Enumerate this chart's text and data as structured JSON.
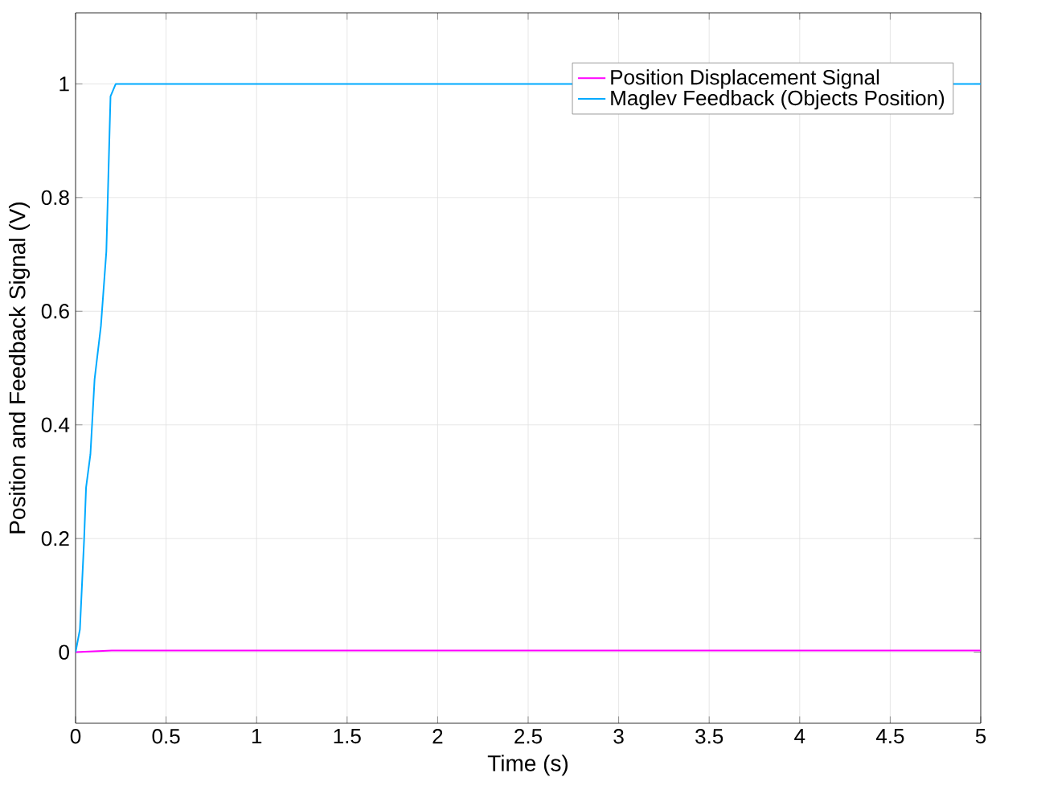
{
  "chart_data": {
    "type": "line",
    "xlabel": "Time (s)",
    "ylabel": "Position and Feedback Signal (V)",
    "xlim": [
      0,
      5
    ],
    "ylim": [
      -0.125,
      1.125
    ],
    "xticks": [
      0,
      0.5,
      1,
      1.5,
      2,
      2.5,
      3,
      3.5,
      4,
      4.5,
      5
    ],
    "yticks": [
      0,
      0.2,
      0.4,
      0.6,
      0.8,
      1
    ],
    "grid": true,
    "legend": "top right",
    "line_style": "solid",
    "marker": "none",
    "series": [
      {
        "name": "Position Displacement Signal",
        "color": "#ff00ff",
        "x": [
          0,
          0.2,
          5
        ],
        "values": [
          0,
          0.003,
          0.003
        ]
      },
      {
        "name": "Maglev Feedback (Objects Position)",
        "color": "#00aaff",
        "x": [
          0,
          0.024,
          0.047,
          0.058,
          0.082,
          0.105,
          0.14,
          0.17,
          0.193,
          0.222,
          5
        ],
        "values": [
          0,
          0.04,
          0.197,
          0.29,
          0.348,
          0.48,
          0.574,
          0.705,
          0.978,
          1,
          1
        ]
      }
    ]
  }
}
